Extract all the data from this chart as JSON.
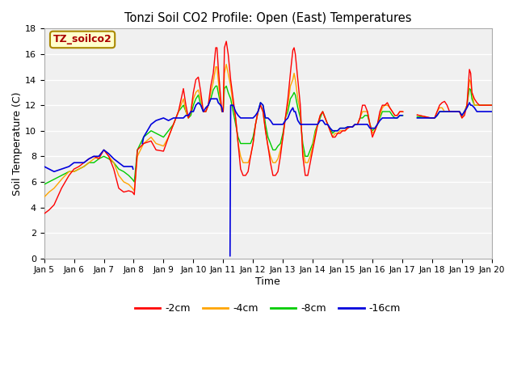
{
  "title": "Tonzi Soil CO2 Profile: Open (East) Temperatures",
  "xlabel": "Time",
  "ylabel": "Soil Temperature (C)",
  "ylim": [
    0,
    18
  ],
  "xlim": [
    0,
    360
  ],
  "plot_bg_color": "#f0f0f0",
  "grid_color": "#ffffff",
  "legend_label": "TZ_soilco2",
  "legend_box_facecolor": "#ffffcc",
  "legend_box_edgecolor": "#aa8800",
  "line_colors": {
    "-2cm": "#ff0000",
    "-4cm": "#ffa500",
    "-8cm": "#00cc00",
    "-16cm": "#0000dd"
  },
  "xtick_labels": [
    "Jan 5",
    "Jan 6",
    "Jan 7",
    "Jan 8",
    "Jan 9",
    "Jan 10",
    "Jan 11",
    "Jan 12",
    "Jan 13",
    "Jan 14",
    "Jan 15",
    "Jan 16",
    "Jan 17",
    "Jan 18",
    "Jan 19",
    "Jan 20"
  ],
  "xtick_positions": [
    0,
    24,
    48,
    72,
    96,
    120,
    144,
    168,
    192,
    216,
    240,
    264,
    288,
    312,
    336,
    360
  ],
  "ytick_labels": [
    "0",
    "2",
    "4",
    "6",
    "8",
    "10",
    "12",
    "14",
    "16",
    "18"
  ],
  "ytick_positions": [
    0,
    2,
    4,
    6,
    8,
    10,
    12,
    14,
    16,
    18
  ]
}
